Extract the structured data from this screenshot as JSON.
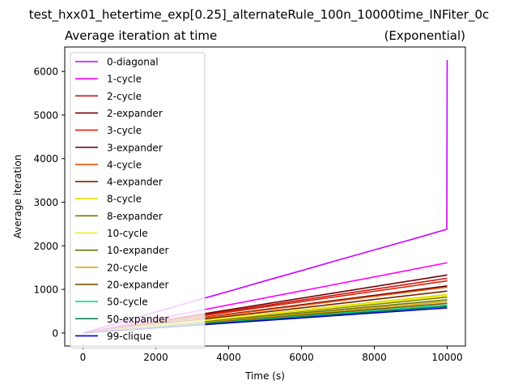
{
  "figure_title": "test_hxx01_hetertime_exp[0.25]_alternateRule_100n_10000time_INFiter_0c",
  "chart_data": {
    "type": "line",
    "title_left": "Average iteration at time",
    "title_right": "(Exponential)",
    "xlabel": "Time (s)",
    "ylabel": "Average iteration",
    "xlim": [
      -500,
      10500
    ],
    "ylim": [
      -300,
      6560
    ],
    "xticks": [
      0,
      2000,
      4000,
      6000,
      8000,
      10000
    ],
    "yticks": [
      0,
      1000,
      2000,
      3000,
      4000,
      5000,
      6000
    ],
    "grid": false,
    "legend_position": "upper-left",
    "series": [
      {
        "name": "0-diagonal",
        "color": "#cc00ff",
        "x": [
          0,
          1000,
          2000,
          3000,
          4000,
          5000,
          6000,
          7000,
          8000,
          9000,
          9990,
          10000
        ],
        "y": [
          0,
          240,
          480,
          720,
          955,
          1195,
          1430,
          1670,
          1905,
          2140,
          2380,
          6260
        ]
      },
      {
        "name": "1-cycle",
        "color": "#ff00ff",
        "x": [
          0,
          10000
        ],
        "y": [
          0,
          1610
        ]
      },
      {
        "name": "2-cycle",
        "color": "#cc1111",
        "x": [
          0,
          10000
        ],
        "y": [
          0,
          1255
        ]
      },
      {
        "name": "2-expander",
        "color": "#770000",
        "x": [
          0,
          10000
        ],
        "y": [
          0,
          1330
        ]
      },
      {
        "name": "3-cycle",
        "color": "#dd2200",
        "x": [
          0,
          10000
        ],
        "y": [
          0,
          1195
        ]
      },
      {
        "name": "3-expander",
        "color": "#660000",
        "x": [
          0,
          10000
        ],
        "y": [
          0,
          1080
        ]
      },
      {
        "name": "4-cycle",
        "color": "#ee5500",
        "x": [
          0,
          10000
        ],
        "y": [
          0,
          1050
        ]
      },
      {
        "name": "4-expander",
        "color": "#772200",
        "x": [
          0,
          10000
        ],
        "y": [
          0,
          960
        ]
      },
      {
        "name": "8-cycle",
        "color": "#dddd00",
        "x": [
          0,
          10000
        ],
        "y": [
          0,
          880
        ]
      },
      {
        "name": "8-expander",
        "color": "#777700",
        "x": [
          0,
          10000
        ],
        "y": [
          0,
          820
        ]
      },
      {
        "name": "10-cycle",
        "color": "#eeee11",
        "x": [
          0,
          10000
        ],
        "y": [
          0,
          850
        ]
      },
      {
        "name": "10-expander",
        "color": "#667700",
        "x": [
          0,
          10000
        ],
        "y": [
          0,
          760
        ]
      },
      {
        "name": "20-cycle",
        "color": "#ddaa00",
        "x": [
          0,
          10000
        ],
        "y": [
          0,
          720
        ]
      },
      {
        "name": "20-expander",
        "color": "#775500",
        "x": [
          0,
          10000
        ],
        "y": [
          0,
          680
        ]
      },
      {
        "name": "50-cycle",
        "color": "#00dd99",
        "x": [
          0,
          10000
        ],
        "y": [
          0,
          640
        ]
      },
      {
        "name": "50-expander",
        "color": "#007755",
        "x": [
          0,
          10000
        ],
        "y": [
          0,
          610
        ]
      },
      {
        "name": "99-clique",
        "color": "#0000cc",
        "x": [
          0,
          10000
        ],
        "y": [
          0,
          575
        ]
      }
    ]
  }
}
